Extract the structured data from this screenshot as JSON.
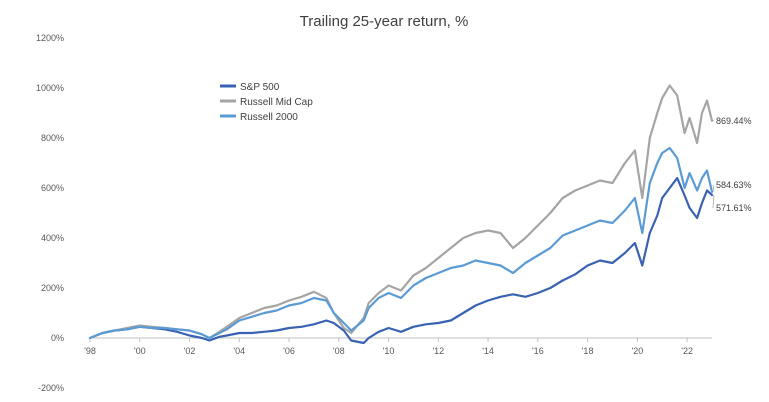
{
  "chart_data": {
    "type": "line",
    "title": "Trailing 25-year return, %",
    "xlabel": "",
    "ylabel": "",
    "xlim": [
      1998,
      2023
    ],
    "ylim": [
      -200,
      1200
    ],
    "y_ticks": [
      -200,
      0,
      200,
      400,
      600,
      800,
      1000,
      1200
    ],
    "y_tick_labels": [
      "-200%",
      "0%",
      "200%",
      "400%",
      "600%",
      "800%",
      "1000%",
      "1200%"
    ],
    "x_ticks": [
      1998,
      2000,
      2002,
      2004,
      2006,
      2008,
      2010,
      2012,
      2014,
      2016,
      2018,
      2020,
      2022
    ],
    "x_tick_labels": [
      "'98",
      "'00",
      "'02",
      "'04",
      "'06",
      "'08",
      "'10",
      "'12",
      "'14",
      "'16",
      "'18",
      "'20",
      "'22"
    ],
    "grid": false,
    "legend_position": "top-left",
    "series": [
      {
        "name": "S&P 500",
        "color": "#3a62b3",
        "end_label": "571.61%",
        "x": [
          1998.0,
          1998.5,
          1999.0,
          1999.5,
          2000.0,
          2000.5,
          2001.0,
          2001.5,
          2002.0,
          2002.5,
          2002.8,
          2003.2,
          2003.5,
          2004.0,
          2004.5,
          2005.0,
          2005.5,
          2006.0,
          2006.5,
          2007.0,
          2007.5,
          2007.8,
          2008.2,
          2008.5,
          2009.0,
          2009.2,
          2009.6,
          2010.0,
          2010.5,
          2011.0,
          2011.5,
          2012.0,
          2012.5,
          2013.0,
          2013.5,
          2014.0,
          2014.5,
          2015.0,
          2015.5,
          2016.0,
          2016.5,
          2017.0,
          2017.5,
          2018.0,
          2018.5,
          2019.0,
          2019.5,
          2019.9,
          2020.2,
          2020.5,
          2020.8,
          2021.0,
          2021.3,
          2021.6,
          2021.9,
          2022.1,
          2022.4,
          2022.6,
          2022.8,
          2023.0
        ],
        "values": [
          0,
          20,
          30,
          35,
          45,
          40,
          35,
          25,
          10,
          0,
          -10,
          5,
          10,
          20,
          20,
          25,
          30,
          40,
          45,
          55,
          70,
          60,
          30,
          -10,
          -20,
          0,
          25,
          40,
          25,
          45,
          55,
          60,
          70,
          100,
          130,
          150,
          165,
          175,
          165,
          180,
          200,
          230,
          255,
          290,
          310,
          300,
          340,
          380,
          290,
          420,
          490,
          560,
          600,
          640,
          570,
          520,
          480,
          540,
          590,
          572
        ]
      },
      {
        "name": "Russell Mid Cap",
        "color": "#a5a5a5",
        "end_label": "869.44%",
        "x": [
          1998.0,
          1998.5,
          1999.0,
          1999.5,
          2000.0,
          2000.5,
          2001.0,
          2001.5,
          2002.0,
          2002.5,
          2002.8,
          2003.2,
          2003.5,
          2004.0,
          2004.5,
          2005.0,
          2005.5,
          2006.0,
          2006.5,
          2007.0,
          2007.5,
          2007.8,
          2008.2,
          2008.5,
          2009.0,
          2009.2,
          2009.6,
          2010.0,
          2010.5,
          2011.0,
          2011.5,
          2012.0,
          2012.5,
          2013.0,
          2013.5,
          2014.0,
          2014.5,
          2015.0,
          2015.5,
          2016.0,
          2016.5,
          2017.0,
          2017.5,
          2018.0,
          2018.5,
          2019.0,
          2019.5,
          2019.9,
          2020.2,
          2020.5,
          2020.8,
          2021.0,
          2021.3,
          2021.6,
          2021.9,
          2022.1,
          2022.4,
          2022.6,
          2022.8,
          2023.0
        ],
        "values": [
          0,
          20,
          30,
          40,
          50,
          45,
          40,
          35,
          30,
          15,
          0,
          25,
          45,
          80,
          100,
          120,
          130,
          150,
          165,
          185,
          160,
          100,
          40,
          20,
          80,
          140,
          180,
          210,
          190,
          250,
          280,
          320,
          360,
          400,
          420,
          430,
          420,
          360,
          400,
          450,
          500,
          560,
          590,
          610,
          630,
          620,
          700,
          750,
          560,
          800,
          900,
          960,
          1010,
          970,
          820,
          880,
          780,
          900,
          950,
          869
        ]
      },
      {
        "name": "Russell 2000",
        "color": "#5b9bd5",
        "end_label": "584.63%",
        "x": [
          1998.0,
          1998.5,
          1999.0,
          1999.5,
          2000.0,
          2000.5,
          2001.0,
          2001.5,
          2002.0,
          2002.5,
          2002.8,
          2003.2,
          2003.5,
          2004.0,
          2004.5,
          2005.0,
          2005.5,
          2006.0,
          2006.5,
          2007.0,
          2007.5,
          2007.8,
          2008.2,
          2008.5,
          2009.0,
          2009.2,
          2009.6,
          2010.0,
          2010.5,
          2011.0,
          2011.5,
          2012.0,
          2012.5,
          2013.0,
          2013.5,
          2014.0,
          2014.5,
          2015.0,
          2015.5,
          2016.0,
          2016.5,
          2017.0,
          2017.5,
          2018.0,
          2018.5,
          2019.0,
          2019.5,
          2019.9,
          2020.2,
          2020.5,
          2020.8,
          2021.0,
          2021.3,
          2021.6,
          2021.9,
          2022.1,
          2022.4,
          2022.6,
          2022.8,
          2023.0
        ],
        "values": [
          0,
          20,
          30,
          35,
          45,
          40,
          40,
          35,
          30,
          15,
          0,
          20,
          35,
          70,
          85,
          100,
          110,
          130,
          140,
          160,
          150,
          100,
          60,
          30,
          70,
          120,
          160,
          180,
          160,
          210,
          240,
          260,
          280,
          290,
          310,
          300,
          290,
          260,
          300,
          330,
          360,
          410,
          430,
          450,
          470,
          460,
          510,
          560,
          420,
          620,
          700,
          740,
          760,
          720,
          600,
          660,
          590,
          640,
          670,
          585
        ]
      }
    ]
  }
}
